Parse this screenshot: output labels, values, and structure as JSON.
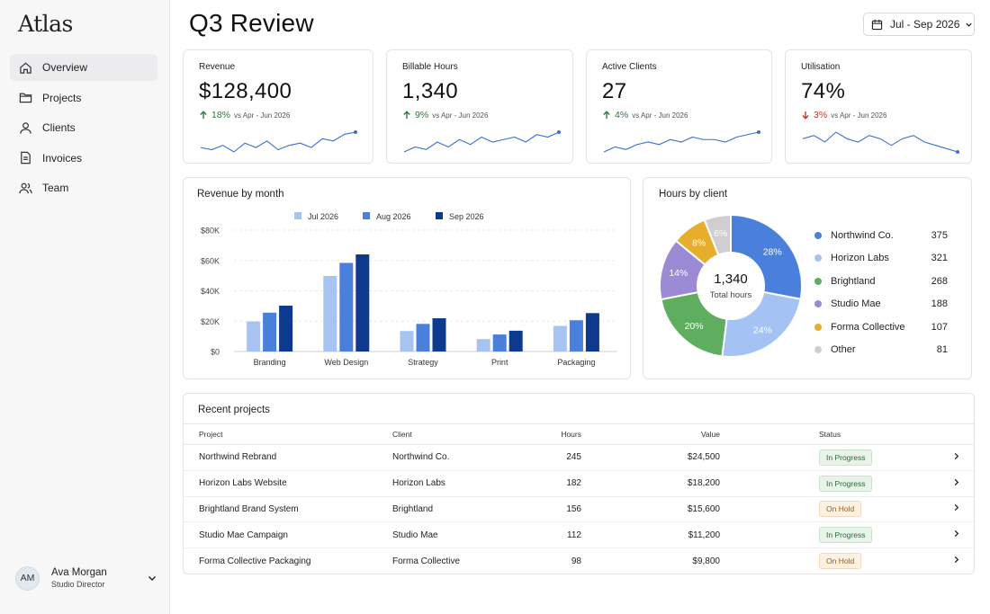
{
  "app": {
    "logo": "Atlas"
  },
  "sidebar": {
    "items": [
      {
        "label": "Overview",
        "icon": "home-icon",
        "active": true
      },
      {
        "label": "Projects",
        "icon": "folder-icon",
        "active": false
      },
      {
        "label": "Clients",
        "icon": "user-icon",
        "active": false
      },
      {
        "label": "Invoices",
        "icon": "document-icon",
        "active": false
      },
      {
        "label": "Team",
        "icon": "users-icon",
        "active": false
      }
    ],
    "user": {
      "initials": "AM",
      "name": "Ava Morgan",
      "role": "Studio Director"
    }
  },
  "header": {
    "title": "Q3 Review",
    "date_range": "Jul - Sep 2026"
  },
  "kpis": [
    {
      "label": "Revenue",
      "value": "$128,400",
      "delta": "18%",
      "direction": "up",
      "compare": "vs Apr - Jun 2026",
      "spark": [
        5,
        4,
        6,
        3,
        7,
        5,
        8,
        4,
        6,
        7,
        5,
        9,
        8,
        11,
        12
      ]
    },
    {
      "label": "Billable Hours",
      "value": "1,340",
      "delta": "9%",
      "direction": "up",
      "compare": "vs Apr - Jun 2026",
      "spark": [
        4,
        6,
        5,
        8,
        6,
        9,
        7,
        10,
        8,
        9,
        10,
        8,
        11,
        10,
        12
      ]
    },
    {
      "label": "Active Clients",
      "value": "27",
      "delta": "4%",
      "direction": "up",
      "compare": "vs Apr - Jun 2026",
      "spark": [
        3,
        5,
        4,
        6,
        7,
        6,
        8,
        7,
        9,
        8,
        8,
        7,
        9,
        10,
        11
      ]
    },
    {
      "label": "Utilisation",
      "value": "74%",
      "delta": "3%",
      "direction": "down",
      "compare": "vs Apr - Jun 2026",
      "spark": [
        8,
        9,
        7,
        10,
        8,
        7,
        9,
        8,
        6,
        8,
        9,
        7,
        6,
        5,
        4
      ]
    }
  ],
  "revenue_panel": {
    "title": "Revenue by month",
    "chart_data": {
      "type": "bar",
      "title": "Revenue by month",
      "categories": [
        "Branding",
        "Web Design",
        "Strategy",
        "Print",
        "Packaging"
      ],
      "series": [
        {
          "name": "Jul 2026",
          "color": "#a7c3f1",
          "values": [
            19800,
            49800,
            13500,
            8200,
            16900
          ]
        },
        {
          "name": "Aug 2026",
          "color": "#4a7fdb",
          "values": [
            25600,
            58400,
            18200,
            11200,
            20600
          ]
        },
        {
          "name": "Sep 2026",
          "color": "#0d3a8c",
          "values": [
            30200,
            64000,
            21900,
            13700,
            25300
          ]
        }
      ],
      "yticks": [
        "$0",
        "$20K",
        "$40K",
        "$60K",
        "$80K"
      ],
      "ylim": [
        0,
        80000
      ],
      "legend": "top",
      "grid": true
    }
  },
  "hours_panel": {
    "title": "Hours by client",
    "center_value": "1,340",
    "center_label": "Total hours",
    "chart_data": {
      "type": "pie",
      "title": "Hours by client",
      "slices": [
        {
          "name": "Northwind Co.",
          "value": 375,
          "pct": "28%",
          "color": "#4a80db"
        },
        {
          "name": "Horizon Labs",
          "value": 321,
          "pct": "24%",
          "color": "#a4c2f3"
        },
        {
          "name": "Brightland",
          "value": 268,
          "pct": "20%",
          "color": "#5fad5f"
        },
        {
          "name": "Studio Mae",
          "value": 188,
          "pct": "14%",
          "color": "#9b8ad4"
        },
        {
          "name": "Forma Collective",
          "value": 107,
          "pct": "8%",
          "color": "#e6ae2b"
        },
        {
          "name": "Other",
          "value": 81,
          "pct": "6%",
          "color": "#cfcfd2"
        }
      ]
    }
  },
  "projects": {
    "title": "Recent projects",
    "columns": {
      "project": "Project",
      "client": "Client",
      "hours": "Hours",
      "value": "Value",
      "status": "Status"
    },
    "rows": [
      {
        "project": "Northwind Rebrand",
        "client": "Northwind Co.",
        "hours": "245",
        "value": "$24,500",
        "status": "In Progress"
      },
      {
        "project": "Horizon Labs Website",
        "client": "Horizon Labs",
        "hours": "182",
        "value": "$18,200",
        "status": "In Progress"
      },
      {
        "project": "Brightland Brand System",
        "client": "Brightland",
        "hours": "156",
        "value": "$15,600",
        "status": "On Hold"
      },
      {
        "project": "Studio Mae Campaign",
        "client": "Studio Mae",
        "hours": "112",
        "value": "$11,200",
        "status": "In Progress"
      },
      {
        "project": "Forma Collective Packaging",
        "client": "Forma Collective",
        "hours": "98",
        "value": "$9,800",
        "status": "On Hold"
      }
    ]
  },
  "colors": {
    "accent": "#3a6fd1",
    "positive": "#2d7a3e",
    "negative": "#c0392b",
    "in_progress": "#2d6b38",
    "on_hold": "#9a5b14"
  }
}
